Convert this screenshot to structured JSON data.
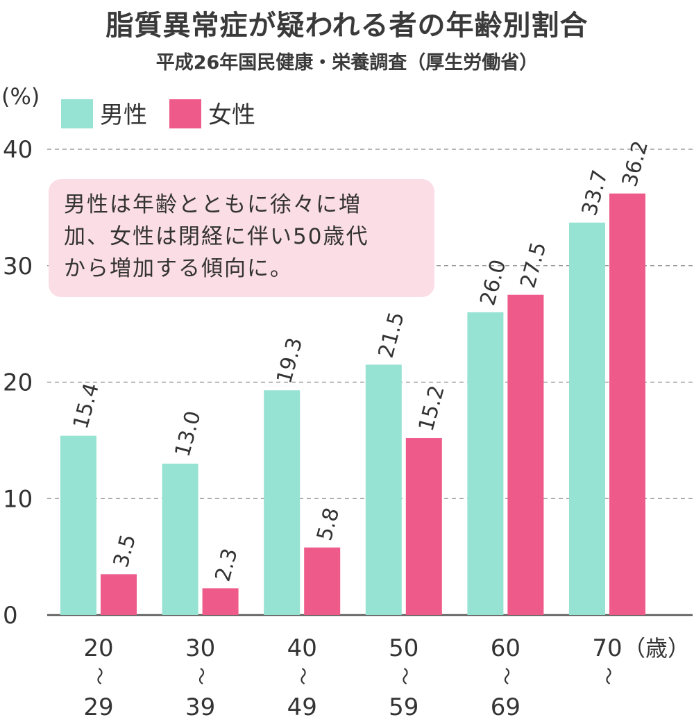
{
  "chart_data": {
    "type": "bar",
    "title": "脂質異常症が疑われる者の年齢別割合",
    "subtitle": "平成26年国民健康・栄養調査（厚生労働省）",
    "ylabel": "(%)",
    "xlabel": "（歳）",
    "ylim": [
      0,
      40
    ],
    "yticks": [
      "0",
      "10",
      "20",
      "30",
      "40"
    ],
    "grid": true,
    "legend_position": "top-left",
    "categories": [
      {
        "from": "20",
        "sep": "〜",
        "to": "29"
      },
      {
        "from": "30",
        "sep": "〜",
        "to": "39"
      },
      {
        "from": "40",
        "sep": "〜",
        "to": "49"
      },
      {
        "from": "50",
        "sep": "〜",
        "to": "59"
      },
      {
        "from": "60",
        "sep": "〜",
        "to": "69"
      },
      {
        "from": "70",
        "sep": "〜",
        "to": ""
      }
    ],
    "series": [
      {
        "name": "男性",
        "color": "#96e3d3",
        "values": [
          15.4,
          13.0,
          19.3,
          21.5,
          26.0,
          33.7
        ],
        "labels": [
          "15.4",
          "13.0",
          "19.3",
          "21.5",
          "26.0",
          "33.7"
        ]
      },
      {
        "name": "女性",
        "color": "#ee5b8a",
        "values": [
          3.5,
          2.3,
          5.8,
          15.2,
          27.5,
          36.2
        ],
        "labels": [
          "3.5",
          "2.3",
          "5.8",
          "15.2",
          "27.5",
          "36.2"
        ]
      }
    ],
    "annotation": {
      "lines": [
        "男性は年齢とともに徐々に増",
        "加、女性は閉経に伴い50歳代",
        "から増加する傾向に。"
      ]
    }
  }
}
